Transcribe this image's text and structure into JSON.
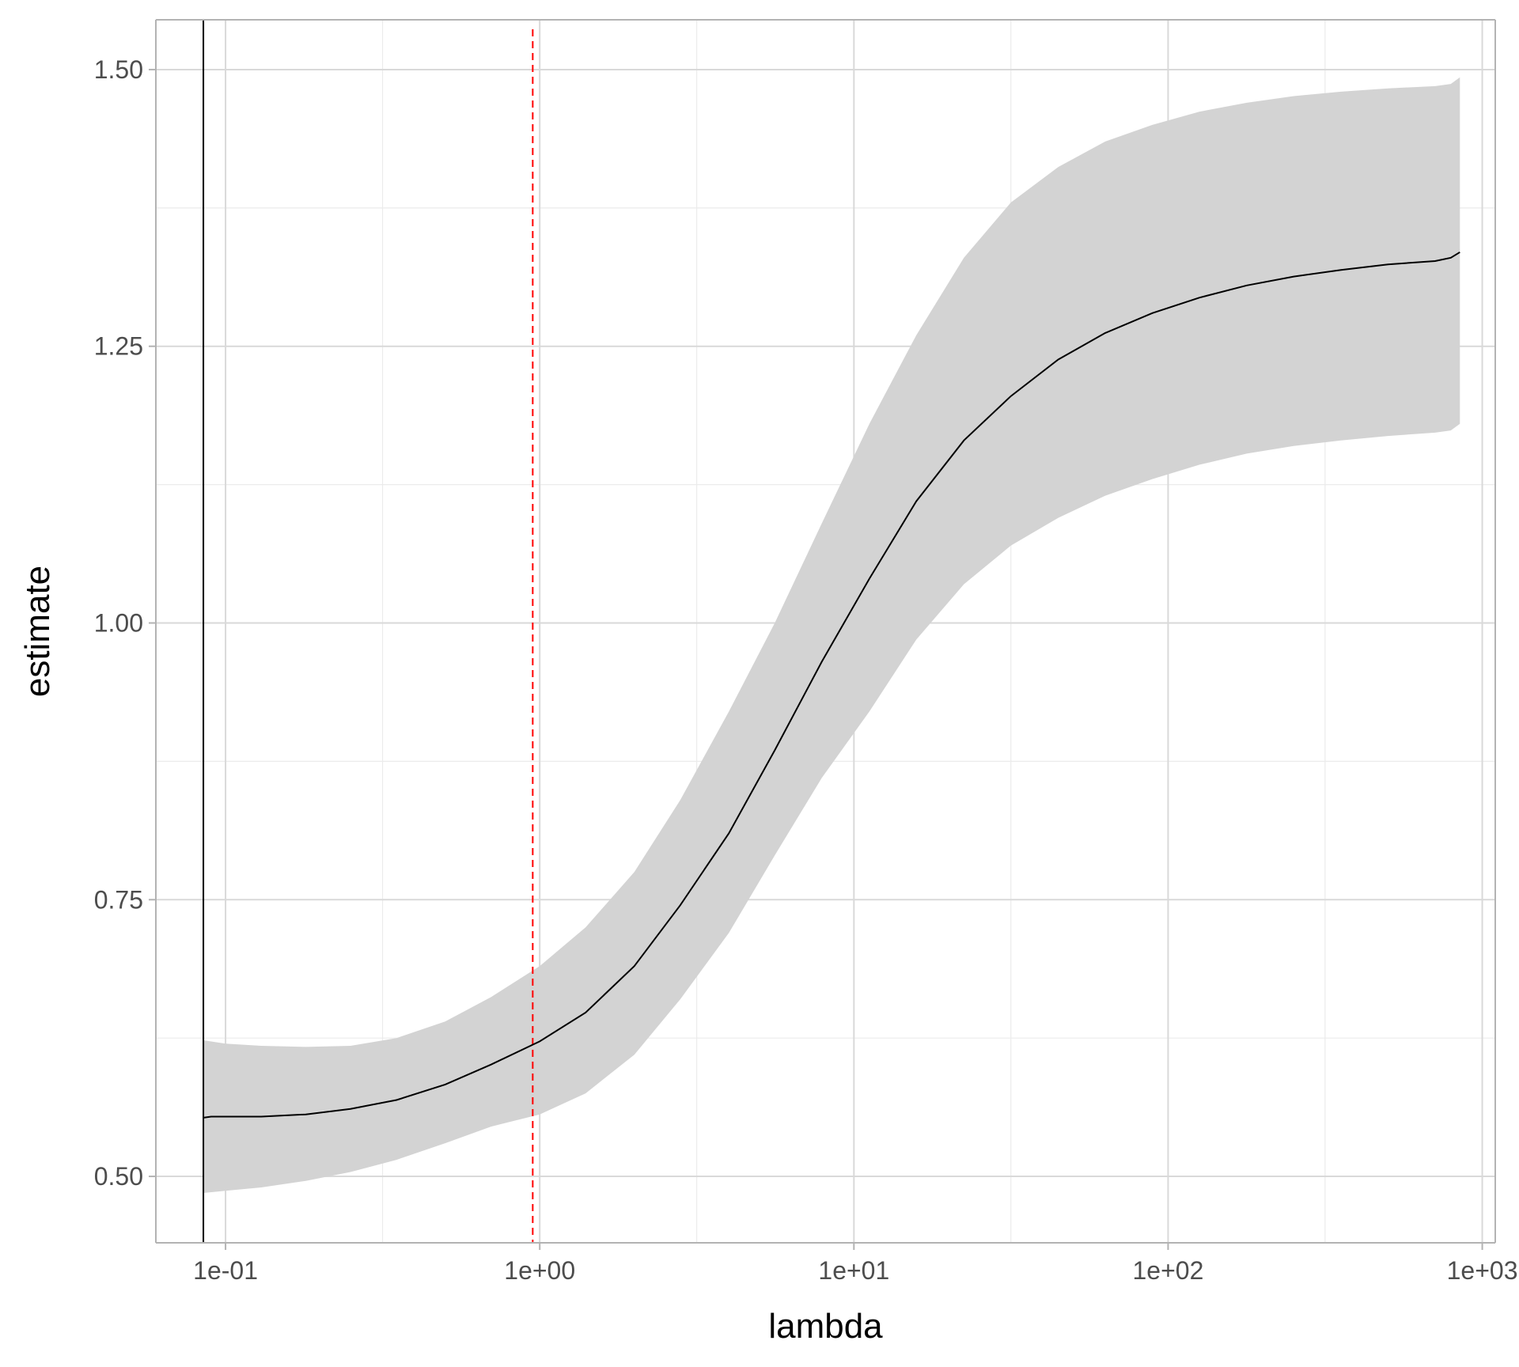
{
  "chart_data": {
    "type": "line",
    "title": "",
    "xlabel": "lambda",
    "ylabel": "estimate",
    "x_scale": "log10",
    "xlim": [
      0.06,
      1100
    ],
    "ylim": [
      0.44,
      1.545
    ],
    "x_ticks": [
      {
        "value": 0.1,
        "label": "1e-01"
      },
      {
        "value": 1,
        "label": "1e+00"
      },
      {
        "value": 10,
        "label": "1e+01"
      },
      {
        "value": 100,
        "label": "1e+02"
      },
      {
        "value": 1000,
        "label": "1e+03"
      }
    ],
    "x_minor_ticks": [
      0.316,
      3.16,
      31.6,
      316
    ],
    "y_ticks": [
      {
        "value": 0.5,
        "label": "0.50"
      },
      {
        "value": 0.75,
        "label": "0.75"
      },
      {
        "value": 1.0,
        "label": "1.00"
      },
      {
        "value": 1.25,
        "label": "1.25"
      },
      {
        "value": 1.5,
        "label": "1.50"
      }
    ],
    "y_minor_ticks": [
      0.625,
      0.875,
      1.125,
      1.375
    ],
    "grid": true,
    "series": [
      {
        "style": "line",
        "color": "#000000",
        "x": [
          0.085,
          0.09,
          0.1,
          0.13,
          0.18,
          0.25,
          0.35,
          0.5,
          0.7,
          1.0,
          1.4,
          2.0,
          2.8,
          4.0,
          5.6,
          7.9,
          11.2,
          15.8,
          22.4,
          31.6,
          44.7,
          63.1,
          89.1,
          126,
          178,
          251,
          355,
          501,
          708,
          794,
          849
        ],
        "y": [
          0.553,
          0.554,
          0.554,
          0.554,
          0.556,
          0.561,
          0.569,
          0.583,
          0.601,
          0.622,
          0.648,
          0.69,
          0.745,
          0.81,
          0.885,
          0.965,
          1.04,
          1.11,
          1.165,
          1.205,
          1.238,
          1.262,
          1.28,
          1.294,
          1.305,
          1.313,
          1.319,
          1.324,
          1.327,
          1.33,
          1.335
        ]
      }
    ],
    "ribbon": {
      "color": "#d3d3d3",
      "x": [
        0.085,
        0.1,
        0.13,
        0.18,
        0.25,
        0.35,
        0.5,
        0.7,
        1.0,
        1.4,
        2.0,
        2.8,
        4.0,
        5.6,
        7.9,
        11.2,
        15.8,
        22.4,
        31.6,
        44.7,
        63.1,
        89.1,
        126,
        178,
        251,
        355,
        501,
        708,
        794,
        849
      ],
      "lower": [
        0.485,
        0.487,
        0.49,
        0.496,
        0.504,
        0.515,
        0.53,
        0.545,
        0.556,
        0.575,
        0.61,
        0.66,
        0.72,
        0.79,
        0.86,
        0.92,
        0.985,
        1.035,
        1.07,
        1.095,
        1.115,
        1.13,
        1.143,
        1.153,
        1.16,
        1.165,
        1.169,
        1.172,
        1.174,
        1.18
      ],
      "upper": [
        0.623,
        0.62,
        0.618,
        0.617,
        0.618,
        0.625,
        0.64,
        0.662,
        0.69,
        0.725,
        0.775,
        0.84,
        0.92,
        1.0,
        1.09,
        1.18,
        1.26,
        1.33,
        1.38,
        1.412,
        1.435,
        1.45,
        1.462,
        1.47,
        1.476,
        1.48,
        1.483,
        1.485,
        1.487,
        1.493
      ]
    },
    "reference_lines": [
      {
        "orientation": "vertical",
        "x": 0.085,
        "color": "#000000",
        "style": "solid"
      },
      {
        "orientation": "vertical",
        "x": 0.95,
        "color": "#ff0000",
        "style": "dashed"
      }
    ]
  }
}
